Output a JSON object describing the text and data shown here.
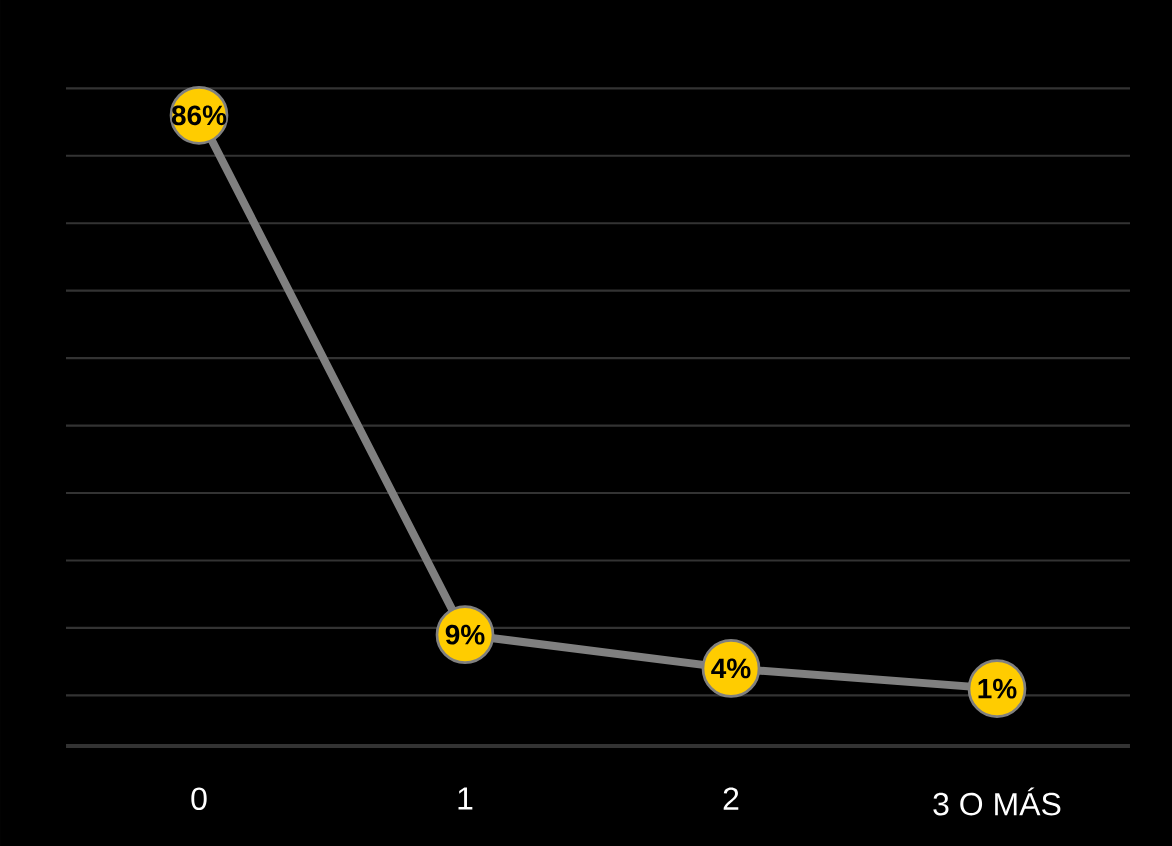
{
  "chart_data": {
    "type": "line",
    "categories": [
      "0",
      "1",
      "2",
      "3 O MÁS"
    ],
    "series": [
      {
        "color": "#808080",
        "colors": [
          "#ffcc00",
          "#ffcc00",
          "#ffcc00",
          "#ffcc00"
        ],
        "values": [
          86,
          9,
          4,
          1
        ],
        "value_labels": [
          "86%",
          "9%",
          "4%",
          "1%"
        ]
      }
    ],
    "tick_labels": "x",
    "grid": "y",
    "marker": "circle",
    "line_style": "solid"
  }
}
